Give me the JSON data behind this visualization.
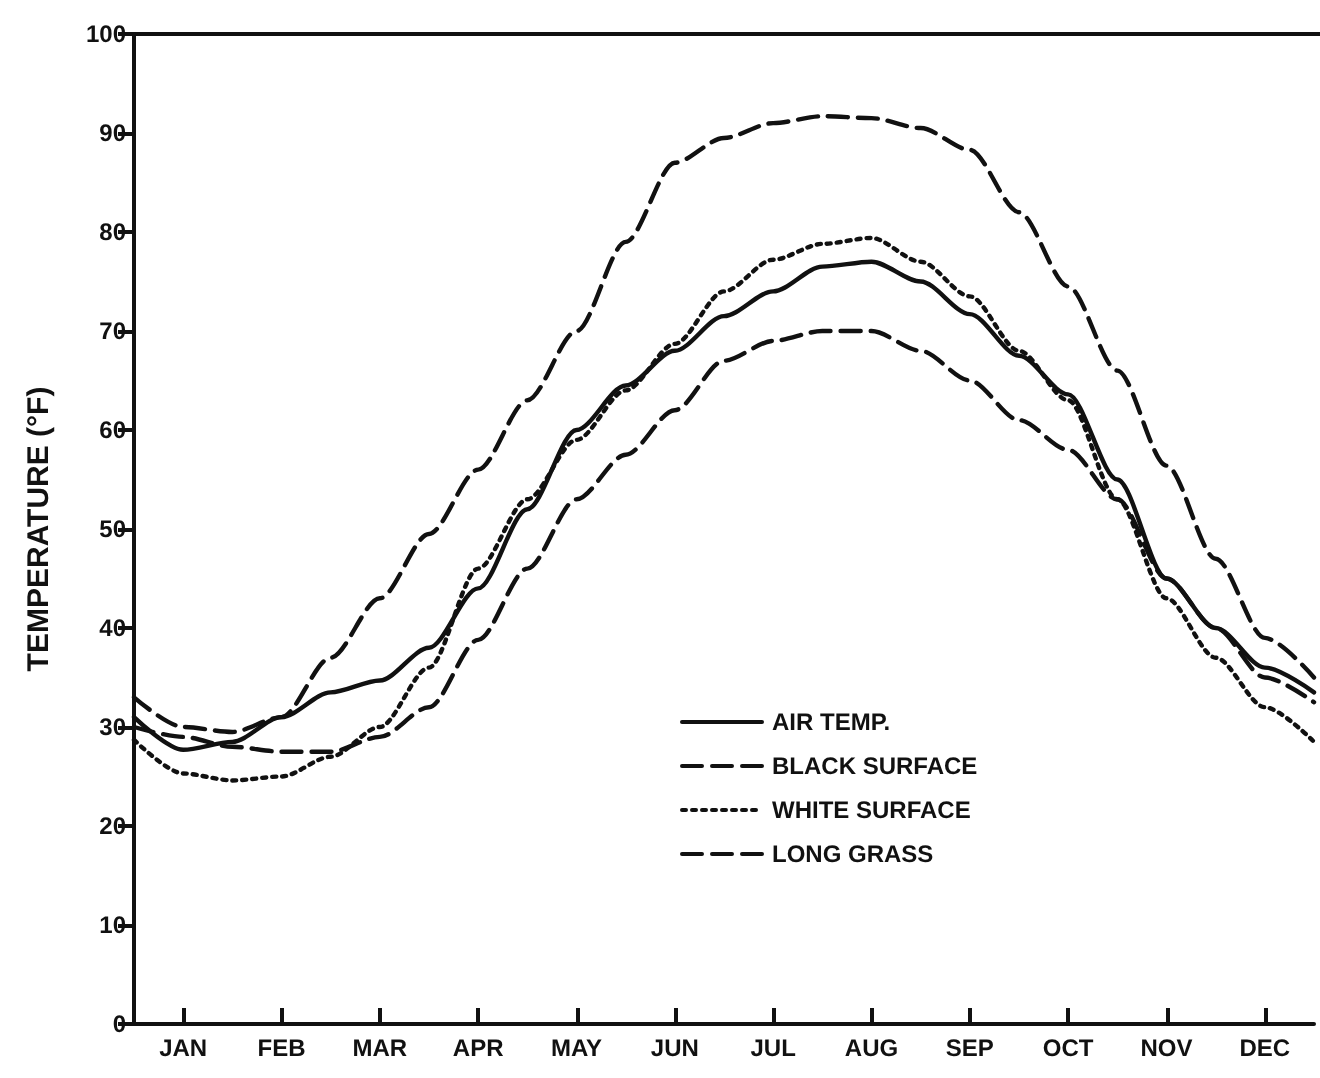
{
  "chart_data": {
    "type": "line",
    "ylabel": "TEMPERATURE (°F)",
    "categories": [
      null,
      "JAN",
      null,
      "FEB",
      null,
      "MAR",
      null,
      "APR",
      null,
      "MAY",
      null,
      "JUN",
      null,
      "JUL",
      null,
      "AUG",
      null,
      "SEP",
      null,
      "OCT",
      null,
      "NOV",
      null,
      "DEC",
      null
    ],
    "series": [
      {
        "name": "AIR TEMP.",
        "color": "#111111",
        "line_style": "solid",
        "values": [
          31,
          27.7,
          28.5,
          31,
          33.5,
          34.7,
          38,
          44,
          52,
          60,
          64.5,
          68,
          71.5,
          74,
          76.5,
          77,
          75,
          71.7,
          67.5,
          63.6,
          55,
          45,
          40,
          36,
          33.5
        ]
      },
      {
        "name": "BLACK SURFACE",
        "color": "#111111",
        "line_style": "dashed",
        "values": [
          33,
          30,
          29.5,
          31,
          37,
          43,
          49.5,
          56,
          63,
          70,
          79,
          87,
          89.5,
          91,
          91.7,
          91.5,
          90.5,
          88.3,
          82,
          74.5,
          66,
          56.4,
          47,
          39,
          35
        ]
      },
      {
        "name": "WHITE SURFACE",
        "color": "#111111",
        "line_style": "dotted",
        "values": [
          28.7,
          25.3,
          24.6,
          25,
          27,
          30,
          36,
          46,
          53,
          59,
          64,
          68.7,
          74,
          77.2,
          78.8,
          79.4,
          77,
          73.5,
          68,
          63,
          53,
          43,
          37,
          32,
          28.5
        ]
      },
      {
        "name": "LONG GRASS",
        "color": "#111111",
        "line_style": "dashed",
        "values": [
          30,
          29,
          28,
          27.5,
          27.5,
          29,
          32,
          38.8,
          46,
          53,
          57.5,
          62,
          67,
          69,
          70,
          70,
          68,
          65,
          61,
          58,
          53,
          45,
          40,
          35,
          32.5
        ]
      }
    ],
    "ylim": [
      0,
      100
    ],
    "yticks": [
      0,
      10,
      20,
      30,
      40,
      50,
      60,
      70,
      80,
      90,
      100
    ],
    "grid": false,
    "legend": "bottom",
    "marker": "none"
  }
}
